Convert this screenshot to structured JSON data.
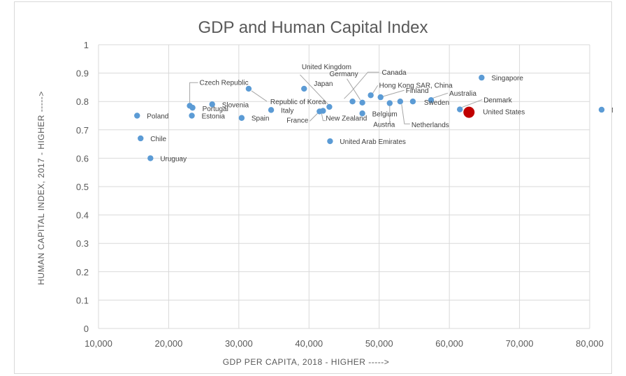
{
  "chart_data": {
    "type": "scatter",
    "title": "GDP and Human Capital Index",
    "xlabel": "GDP PER CAPITA, 2018 - HIGHER ----->",
    "ylabel": "HUMAN CAPITAL INDEX, 2017 - HIGHER ----->",
    "xlim": [
      10000,
      80000
    ],
    "ylim": [
      0,
      1
    ],
    "x_ticks": [
      "10,000",
      "20,000",
      "30,000",
      "40,000",
      "50,000",
      "60,000",
      "70,000",
      "80,000"
    ],
    "y_ticks": [
      "0",
      "0.1",
      "0.2",
      "0.3",
      "0.4",
      "0.5",
      "0.6",
      "0.7",
      "0.8",
      "0.9",
      "1"
    ],
    "grid": true,
    "colors": {
      "point": "#5b9bd5",
      "highlight": "#c00000"
    },
    "points": [
      {
        "label": "Poland",
        "x": 15500,
        "y": 0.75
      },
      {
        "label": "Chile",
        "x": 16000,
        "y": 0.67
      },
      {
        "label": "Uruguay",
        "x": 17400,
        "y": 0.6
      },
      {
        "label": "Czech Republic",
        "x": 23000,
        "y": 0.785
      },
      {
        "label": "Portugal",
        "x": 23400,
        "y": 0.778
      },
      {
        "label": "Estonia",
        "x": 23300,
        "y": 0.75
      },
      {
        "label": "Slovenia",
        "x": 26200,
        "y": 0.79
      },
      {
        "label": "Spain",
        "x": 30400,
        "y": 0.742
      },
      {
        "label": "Republic of Korea",
        "x": 31400,
        "y": 0.845
      },
      {
        "label": "Italy",
        "x": 34600,
        "y": 0.77
      },
      {
        "label": "Japan",
        "x": 39300,
        "y": 0.845
      },
      {
        "label": "United Kingdom",
        "x": 42900,
        "y": 0.781
      },
      {
        "label": "France",
        "x": 41500,
        "y": 0.765
      },
      {
        "label": "New Zealand",
        "x": 42000,
        "y": 0.767
      },
      {
        "label": "United Arab Emirates",
        "x": 43000,
        "y": 0.66
      },
      {
        "label": "Germany",
        "x": 47600,
        "y": 0.796
      },
      {
        "label": "Canada",
        "x": 46200,
        "y": 0.8
      },
      {
        "label": "Belgium",
        "x": 47600,
        "y": 0.758
      },
      {
        "label": "Hong Kong SAR, China",
        "x": 48800,
        "y": 0.822
      },
      {
        "label": "Finland",
        "x": 50200,
        "y": 0.815
      },
      {
        "label": "Austria",
        "x": 51500,
        "y": 0.794
      },
      {
        "label": "Netherlands",
        "x": 53000,
        "y": 0.8
      },
      {
        "label": "Sweden",
        "x": 54800,
        "y": 0.8
      },
      {
        "label": "Australia",
        "x": 57400,
        "y": 0.805
      },
      {
        "label": "Denmark",
        "x": 61500,
        "y": 0.772
      },
      {
        "label": "Singapore",
        "x": 64600,
        "y": 0.884
      },
      {
        "label": "Norway",
        "x": 81700,
        "y": 0.771
      },
      {
        "label": "United States",
        "x": 62800,
        "y": 0.762,
        "highlight": true
      }
    ]
  }
}
